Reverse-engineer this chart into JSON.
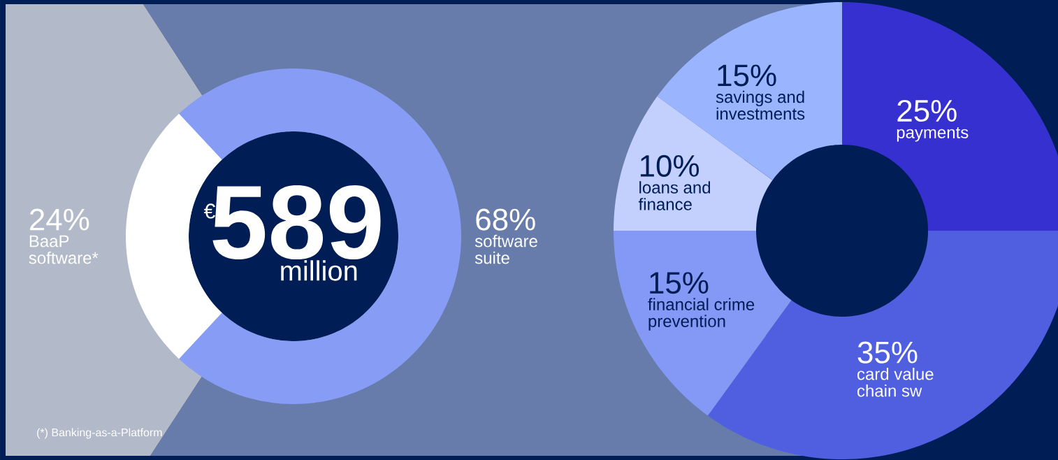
{
  "chart_data": [
    {
      "type": "donut",
      "categories": [
        "BaaP software*",
        "software suite"
      ],
      "values": [
        24,
        68
      ],
      "colors": [
        "#ffffff",
        "#869cf5"
      ],
      "value_labels": [
        "24%",
        "68%"
      ],
      "annotations": [
        "€",
        "589",
        "million",
        "(*) Banking-as-a-Platform"
      ]
    },
    {
      "type": "donut",
      "categories": [
        "payments",
        "card value chain sw",
        "financial crime prevention",
        "loans and finance",
        "savings and investments"
      ],
      "values": [
        25,
        35,
        15,
        10,
        15
      ],
      "colors": [
        "#3530cf",
        "#4f5fe0",
        "#8399f5",
        "#c3d0fe",
        "#9ab5fd"
      ],
      "value_labels": [
        "25%",
        "35%",
        "15%",
        "10%",
        "15%"
      ]
    }
  ]
}
